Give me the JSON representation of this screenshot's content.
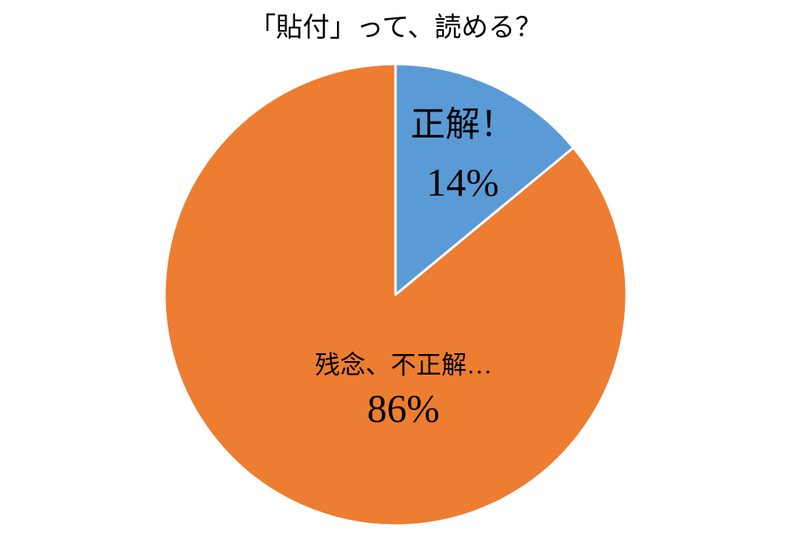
{
  "chart_data": {
    "type": "pie",
    "title": "「貼付」って、読める？",
    "categories": [
      "正解！",
      "残念、不正解…"
    ],
    "values": [
      14,
      86
    ],
    "value_labels": [
      "14%",
      "86%"
    ],
    "colors": [
      "#5b9bd5",
      "#ed7d31"
    ]
  }
}
